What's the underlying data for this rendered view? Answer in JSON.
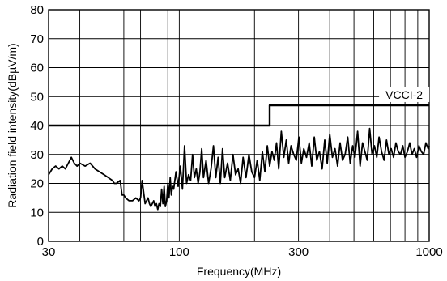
{
  "chart_data": {
    "type": "line",
    "title": "",
    "xlabel": "Frequency(MHz)",
    "ylabel": "Radiation field intensity(dBµV/m)",
    "x_scale": "log",
    "xlim": [
      30,
      1000
    ],
    "ylim": [
      0,
      80
    ],
    "y_ticks": [
      "0",
      "10",
      "20",
      "30",
      "40",
      "50",
      "60",
      "70",
      "80"
    ],
    "x_tick_labels": [
      {
        "value": 30,
        "label": "30"
      },
      {
        "value": 100,
        "label": "100"
      },
      {
        "value": 300,
        "label": "300"
      },
      {
        "value": 1000,
        "label": "1000"
      }
    ],
    "x_gridlines": [
      30,
      40,
      50,
      60,
      70,
      80,
      90,
      100,
      200,
      300,
      400,
      500,
      600,
      700,
      800,
      900,
      1000
    ],
    "y_gridlines": [
      0,
      10,
      20,
      30,
      40,
      50,
      60,
      70,
      80
    ],
    "grid": true,
    "legend": "none",
    "series": [
      {
        "name": "VCCI-2",
        "style": "limit",
        "x": [
          30,
          230,
          230,
          1000
        ],
        "y": [
          40,
          40,
          47,
          47
        ]
      },
      {
        "name": "",
        "style": "measured",
        "x": [
          30,
          31,
          32,
          33,
          34,
          35,
          36,
          37,
          38,
          39,
          40,
          42,
          44,
          46,
          48,
          50,
          52,
          54,
          55,
          56,
          58,
          59,
          60,
          61,
          63,
          65,
          67,
          69,
          70,
          71,
          73,
          75,
          76,
          77,
          79,
          80,
          81,
          82,
          83,
          84,
          85,
          86,
          87,
          88,
          89,
          90,
          91,
          92,
          93,
          94,
          95,
          97,
          99,
          101,
          103,
          105,
          107,
          109,
          111,
          113,
          115,
          117,
          119,
          121,
          123,
          125,
          128,
          131,
          134,
          137,
          140,
          143,
          146,
          149,
          152,
          156,
          160,
          164,
          168,
          172,
          176,
          180,
          185,
          190,
          195,
          200,
          205,
          210,
          215,
          220,
          225,
          230,
          235,
          240,
          245,
          250,
          256,
          262,
          268,
          274,
          280,
          287,
          294,
          301,
          308,
          315,
          323,
          331,
          339,
          347,
          355,
          364,
          373,
          382,
          391,
          400,
          410,
          420,
          430,
          440,
          450,
          461,
          472,
          483,
          494,
          505,
          517,
          529,
          541,
          553,
          565,
          578,
          591,
          604,
          617,
          630,
          645,
          660,
          675,
          690,
          705,
          720,
          736,
          752,
          768,
          784,
          800,
          818,
          836,
          854,
          872,
          890,
          910,
          930,
          950,
          970,
          990,
          1000
        ],
        "y": [
          23,
          25,
          26,
          25,
          26,
          25,
          27,
          29,
          27,
          26,
          27,
          26,
          27,
          25,
          24,
          23,
          22,
          21,
          20,
          20,
          21,
          16,
          16,
          15,
          14,
          14,
          15,
          14,
          15,
          21,
          13,
          15,
          13,
          12,
          14,
          12,
          13,
          11,
          13,
          12,
          18,
          13,
          19,
          12,
          14,
          20,
          15,
          22,
          16,
          19,
          18,
          24,
          19,
          26,
          18,
          33,
          20,
          23,
          21,
          30,
          22,
          25,
          20,
          24,
          32,
          22,
          28,
          20,
          25,
          33,
          22,
          29,
          20,
          32,
          22,
          27,
          21,
          30,
          23,
          25,
          20,
          29,
          22,
          30,
          24,
          22,
          28,
          21,
          31,
          24,
          33,
          26,
          31,
          28,
          34,
          25,
          38,
          29,
          35,
          27,
          33,
          30,
          28,
          36,
          27,
          32,
          29,
          34,
          26,
          36,
          28,
          31,
          25,
          35,
          27,
          37,
          29,
          32,
          26,
          34,
          28,
          30,
          36,
          27,
          33,
          29,
          38,
          26,
          34,
          31,
          28,
          39,
          30,
          33,
          29,
          36,
          31,
          28,
          35,
          30,
          32,
          29,
          34,
          31,
          30,
          33,
          29,
          31,
          34,
          30,
          32,
          29,
          33,
          31,
          30,
          34,
          32,
          33
        ]
      }
    ],
    "annotations": [
      {
        "text": "VCCI-2",
        "attached_to": "VCCI-2"
      }
    ]
  }
}
